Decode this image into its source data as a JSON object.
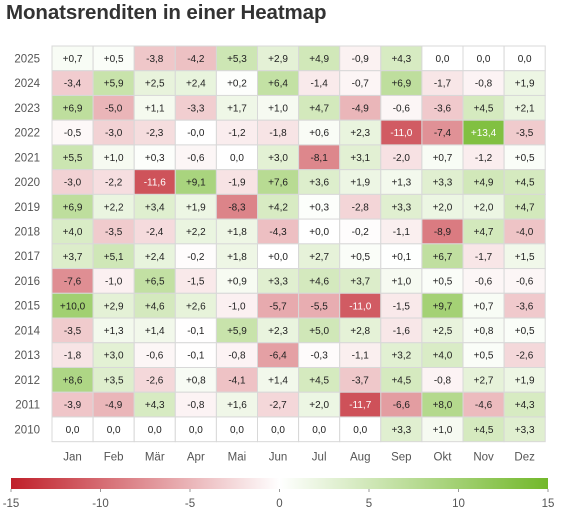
{
  "chart_data": {
    "type": "heatmap",
    "title": "Monatsrenditen in einer Heatmap",
    "x_categories": [
      "Jan",
      "Feb",
      "Mär",
      "Apr",
      "Mai",
      "Jun",
      "Jul",
      "Aug",
      "Sep",
      "Okt",
      "Nov",
      "Dez"
    ],
    "y_categories": [
      "2025",
      "2024",
      "2023",
      "2022",
      "2021",
      "2020",
      "2019",
      "2018",
      "2017",
      "2016",
      "2015",
      "2014",
      "2013",
      "2012",
      "2011",
      "2010"
    ],
    "values": [
      [
        "+0,7",
        "+0,5",
        "-3,8",
        "-4,2",
        "+5,3",
        "+2,9",
        "+4,9",
        "-0,9",
        "+4,3",
        "0,0",
        "0,0",
        "0,0"
      ],
      [
        "-3,4",
        "+5,9",
        "+2,5",
        "+2,4",
        "+0,2",
        "+6,4",
        "-1,4",
        "-0,7",
        "+6,9",
        "-1,7",
        "-0,8",
        "+1,9"
      ],
      [
        "+6,9",
        "-5,0",
        "+1,1",
        "-3,3",
        "+1,7",
        "+1,0",
        "+4,7",
        "-4,9",
        "-0,6",
        "-3,6",
        "+4,5",
        "+2,1"
      ],
      [
        "-0,5",
        "-3,0",
        "-2,3",
        "-0,0",
        "-1,2",
        "-1,8",
        "+0,6",
        "+2,3",
        "-11,0",
        "-7,4",
        "+13,4",
        "-3,5"
      ],
      [
        "+5,5",
        "+1,0",
        "+0,3",
        "-0,6",
        "0,0",
        "+3,0",
        "-8,1",
        "+3,1",
        "-2,0",
        "+0,7",
        "-1,2",
        "+0,5"
      ],
      [
        "-3,0",
        "-2,2",
        "-11,6",
        "+9,1",
        "-1,9",
        "+7,6",
        "+3,6",
        "+1,9",
        "+1,3",
        "+3,3",
        "+4,9",
        "+4,5"
      ],
      [
        "+6,9",
        "+2,2",
        "+3,4",
        "+1,9",
        "-8,3",
        "+4,2",
        "+0,3",
        "-2,8",
        "+3,3",
        "+2,0",
        "+2,0",
        "+4,7"
      ],
      [
        "+4,0",
        "-3,5",
        "-2,4",
        "+2,2",
        "+1,8",
        "-4,3",
        "+0,0",
        "-0,2",
        "-1,1",
        "-8,9",
        "+4,7",
        "-4,0"
      ],
      [
        "+3,7",
        "+5,1",
        "+2,4",
        "-0,2",
        "+1,8",
        "+0,0",
        "+2,7",
        "+0,5",
        "+0,1",
        "+6,7",
        "-1,7",
        "+1,5"
      ],
      [
        "-7,6",
        "-1,0",
        "+6,5",
        "-1,5",
        "+0,9",
        "+3,3",
        "+4,6",
        "+3,7",
        "+1,0",
        "+0,5",
        "-0,6",
        "-0,6"
      ],
      [
        "+10,0",
        "+2,9",
        "+4,6",
        "+2,6",
        "-1,0",
        "-5,7",
        "-5,5",
        "-11,0",
        "-1,5",
        "+9,7",
        "+0,7",
        "-3,6"
      ],
      [
        "-3,5",
        "+1,3",
        "+1,4",
        "-0,1",
        "+5,9",
        "+2,3",
        "+5,0",
        "+2,8",
        "-1,6",
        "+2,5",
        "+0,8",
        "+0,5"
      ],
      [
        "-1,8",
        "+3,0",
        "-0,6",
        "-0,1",
        "-0,8",
        "-6,4",
        "-0,3",
        "-1,1",
        "+3,2",
        "+4,0",
        "+0,5",
        "-2,6"
      ],
      [
        "+8,6",
        "+3,5",
        "-2,6",
        "+0,8",
        "-4,1",
        "+1,4",
        "+4,5",
        "-3,7",
        "+4,5",
        "-0,8",
        "+2,7",
        "+1,9"
      ],
      [
        "-3,9",
        "-4,9",
        "+4,3",
        "-0,8",
        "+1,6",
        "-2,7",
        "+2,0",
        "-11,7",
        "-6,6",
        "+8,0",
        "-4,6",
        "+4,3"
      ],
      [
        "0,0",
        "0,0",
        "0,0",
        "0,0",
        "0,0",
        "0,0",
        "0,0",
        "0,0",
        "+3,3",
        "+1,0",
        "+4,5",
        "+3,3"
      ]
    ],
    "color_scale": {
      "range": [
        -15,
        15
      ],
      "ticks": [
        "-15",
        "-10",
        "-5",
        "0",
        "5",
        "10",
        "15"
      ],
      "negative_color": "#c0202a",
      "neutral_color": "#ffffff",
      "positive_color": "#72b82a"
    },
    "legend_placement": "bottom"
  }
}
